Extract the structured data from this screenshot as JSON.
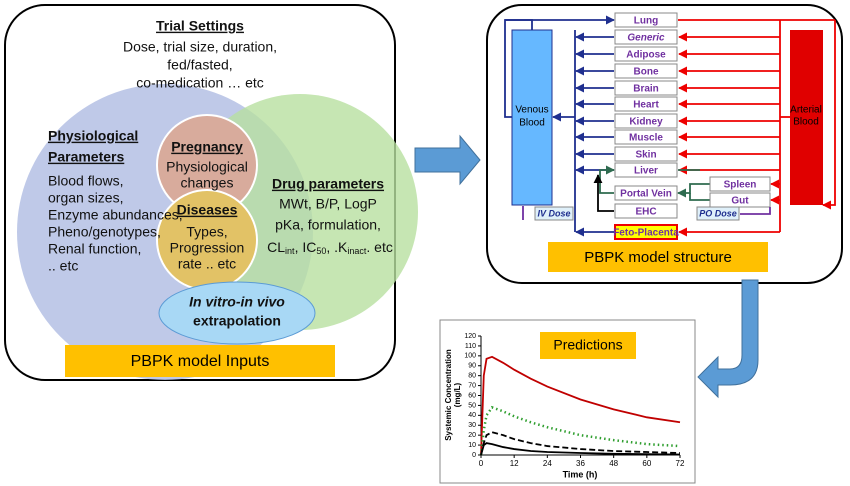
{
  "inputs": {
    "trial_title": "Trial Settings",
    "trial_lines": [
      "Dose, trial size, duration,",
      "fed/fasted,",
      "co-medication … etc"
    ],
    "physio_title": [
      "Physiological",
      "Parameters"
    ],
    "physio_lines": [
      "Blood flows,",
      "organ sizes,",
      "Enzyme abundances,",
      "Pheno/genotypes,",
      "Renal function,",
      ".. etc"
    ],
    "pregnancy_title": "Pregnancy",
    "pregnancy_lines": [
      "Physiological",
      "changes"
    ],
    "diseases_title": "Diseases",
    "diseases_lines": [
      "Types,",
      "Progression",
      "rate .. etc"
    ],
    "drug_title": "Drug parameters",
    "drug_lines": [
      "MWt, B/P, LogP",
      "pKa, formulation,"
    ],
    "drug_last_line": [
      "CL",
      "int",
      ", IC",
      "50",
      ", .K",
      "inact",
      ". etc"
    ],
    "ivive_lines": [
      "In vitro-in vivo",
      "extrapolation"
    ],
    "footer": "PBPK model Inputs"
  },
  "structure": {
    "compartments": [
      "Lung",
      "Generic",
      "Adipose",
      "Bone",
      "Brain",
      "Heart",
      "Kidney",
      "Muscle",
      "Skin",
      "Liver",
      "Portal Vein",
      "EHC",
      "Feto-Placenta"
    ],
    "gi_compartments": [
      "Spleen",
      "Gut"
    ],
    "venous_lines": [
      "Venous",
      "Blood"
    ],
    "arterial_lines": [
      "Arterial",
      "Blood"
    ],
    "iv_dose": "IV Dose",
    "po_dose": "PO Dose",
    "footer": "PBPK model structure"
  },
  "predictions": {
    "title": "Predictions",
    "y_label": [
      "Systemic Concentration",
      "(mg/L)"
    ],
    "x_label": "Time (h)",
    "x": [
      0,
      1,
      2,
      4,
      8,
      12,
      18,
      24,
      36,
      48,
      60,
      72
    ],
    "series": [
      {
        "color": "#c00000",
        "style": "solid",
        "values": [
          0,
          80,
          97,
          99,
          93,
          86,
          77,
          69,
          56,
          46,
          38,
          33
        ]
      },
      {
        "color": "#2e9e2e",
        "style": "dotted",
        "values": [
          0,
          25,
          40,
          48,
          44,
          39,
          33,
          28,
          20,
          15,
          11,
          9
        ]
      },
      {
        "color": "#000000",
        "style": "dashed",
        "values": [
          0,
          12,
          20,
          23,
          20,
          16,
          12,
          9,
          6,
          4,
          3,
          2
        ]
      },
      {
        "color": "#000000",
        "style": "solid",
        "values": [
          0,
          10,
          12,
          11,
          8,
          6,
          4,
          3,
          2,
          1.2,
          0.8,
          0.5
        ]
      }
    ],
    "xlim": [
      0,
      72
    ],
    "xticks": [
      0,
      12,
      24,
      36,
      48,
      60,
      72
    ],
    "ylim": [
      0,
      120
    ],
    "yticks": [
      0,
      10,
      20,
      30,
      40,
      50,
      60,
      70,
      80,
      90,
      100,
      110,
      120
    ]
  }
}
